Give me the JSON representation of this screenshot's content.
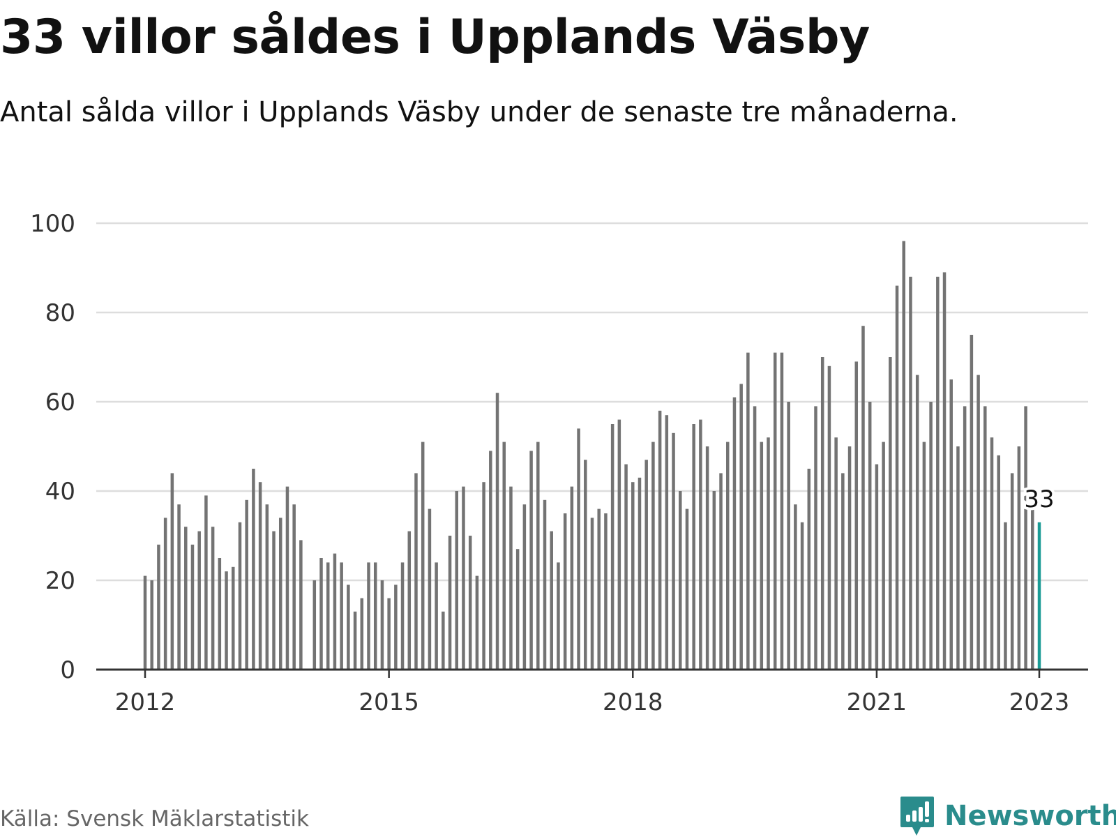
{
  "header": {
    "title": "33 villor såldes i Upplands Väsby",
    "subtitle": "Antal sålda villor i Upplands Väsby under de senaste tre månaderna."
  },
  "footer": {
    "source": "Källa: Svensk Mäklarstatistik",
    "brand": "Newsworthy",
    "brand_icon": "newsworthy-logo-icon"
  },
  "colors": {
    "bar": "#737373",
    "highlight": "#1a9b95",
    "grid": "#dddddd",
    "axis": "#333333",
    "brand": "#2a8c8c"
  },
  "chart_data": {
    "type": "bar",
    "x_start": "2012-01",
    "x_end": "2023-01",
    "x_ticks": [
      "2012",
      "2015",
      "2018",
      "2021",
      "2023"
    ],
    "y_ticks": [
      0,
      20,
      40,
      60,
      80,
      100
    ],
    "ylim": [
      0,
      100
    ],
    "grid": true,
    "highlight_label": "33",
    "series": [
      {
        "values": [
          21,
          20,
          28,
          34,
          44,
          37,
          32,
          28,
          31,
          39,
          32,
          25,
          22,
          23,
          33,
          38,
          45,
          42,
          37,
          31,
          34,
          41,
          37,
          29,
          0,
          20,
          25,
          24,
          26,
          24,
          19,
          13,
          16,
          24,
          24,
          20,
          16,
          19,
          24,
          31,
          44,
          51,
          36,
          24,
          13,
          30,
          40,
          41,
          30,
          21,
          42,
          49,
          62,
          51,
          41,
          27,
          37,
          49,
          51,
          38,
          31,
          24,
          35,
          41,
          54,
          47,
          34,
          36,
          35,
          55,
          56,
          46,
          42,
          43,
          47,
          51,
          58,
          57,
          53,
          40,
          36,
          55,
          56,
          50,
          40,
          44,
          51,
          61,
          64,
          71,
          59,
          51,
          52,
          71,
          71,
          60,
          37,
          33,
          45,
          59,
          70,
          68,
          52,
          44,
          50,
          69,
          77,
          60,
          46,
          51,
          70,
          86,
          96,
          88,
          66,
          51,
          60,
          88,
          89,
          65,
          50,
          59,
          75,
          66,
          59,
          52,
          48,
          33,
          44,
          50,
          59,
          36,
          33
        ]
      }
    ]
  }
}
